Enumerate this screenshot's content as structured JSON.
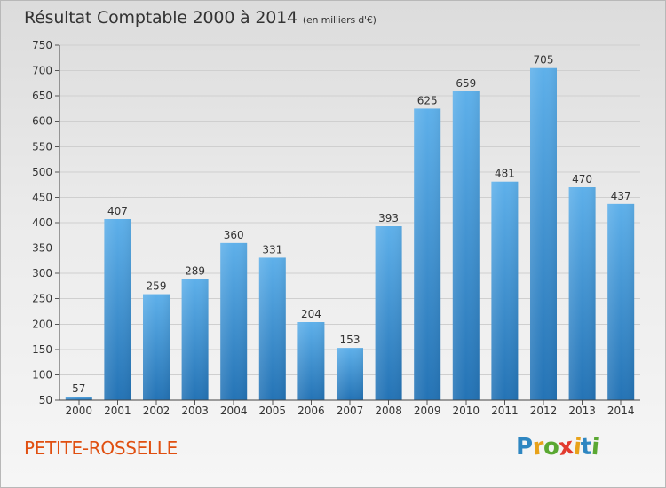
{
  "title": "Résultat Comptable 2000 à 2014",
  "subtitle": "(en milliers d'€)",
  "location": "PETITE-ROSSELLE",
  "logo": {
    "letters": [
      "P",
      "r",
      "o",
      "x",
      "i",
      "t",
      "i"
    ],
    "colors": [
      "#2e86c1",
      "#e8a21a",
      "#5aa832",
      "#e23a2e",
      "#e8a21a",
      "#2e86c1",
      "#5aa832"
    ]
  },
  "chart_data": {
    "type": "bar",
    "categories": [
      "2000",
      "2001",
      "2002",
      "2003",
      "2004",
      "2005",
      "2006",
      "2007",
      "2008",
      "2009",
      "2010",
      "2011",
      "2012",
      "2013",
      "2014"
    ],
    "values": [
      57,
      407,
      259,
      289,
      360,
      331,
      204,
      153,
      393,
      625,
      659,
      481,
      705,
      470,
      437
    ],
    "data_labels": [
      "57",
      "407",
      "259",
      "289",
      "360",
      "331",
      "204",
      "153",
      "393",
      "625",
      "659",
      "481",
      "705",
      "470",
      "437"
    ],
    "ylim": [
      50,
      750
    ],
    "yticks": [
      "50",
      "100",
      "150",
      "200",
      "250",
      "300",
      "350",
      "400",
      "450",
      "500",
      "550",
      "600",
      "650",
      "700",
      "750"
    ],
    "grid": true,
    "bar_color": "#3a8fd4"
  }
}
